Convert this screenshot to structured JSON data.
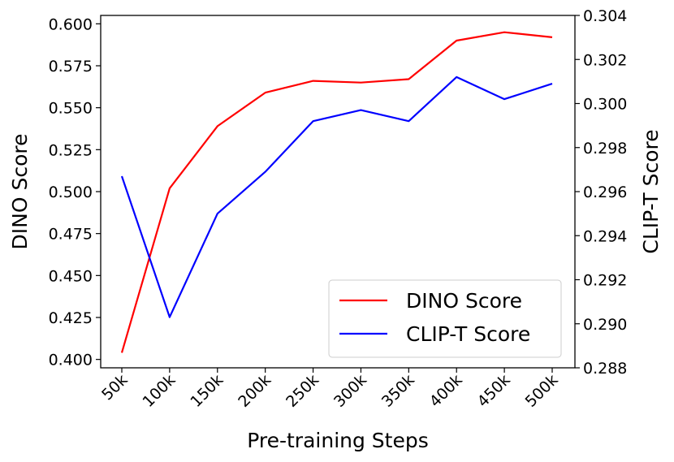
{
  "chart_data": {
    "type": "line",
    "categories": [
      "50k",
      "100k",
      "150k",
      "200k",
      "250k",
      "300k",
      "350k",
      "400k",
      "450k",
      "500k"
    ],
    "xlabel": "Pre-training Steps",
    "ylabel_left": "DINO Score",
    "ylabel_right": "CLIP-T Score",
    "ylim_left": [
      0.395,
      0.605
    ],
    "ylim_right": [
      0.288,
      0.304
    ],
    "yticks_left": [
      "0.400",
      "0.425",
      "0.450",
      "0.475",
      "0.500",
      "0.525",
      "0.550",
      "0.575",
      "0.600"
    ],
    "yticks_right": [
      "0.288",
      "0.290",
      "0.292",
      "0.294",
      "0.296",
      "0.298",
      "0.300",
      "0.302",
      "0.304"
    ],
    "grid": false,
    "legend_position": "lower-right",
    "series": [
      {
        "name": "DINO Score",
        "axis": "left",
        "color": "#ff0000",
        "values": [
          0.404,
          0.502,
          0.539,
          0.559,
          0.566,
          0.565,
          0.567,
          0.59,
          0.595,
          0.592
        ]
      },
      {
        "name": "CLIP-T Score",
        "axis": "right",
        "color": "#0000ff",
        "values": [
          0.2967,
          0.2903,
          0.295,
          0.2969,
          0.2992,
          0.2997,
          0.2992,
          0.3012,
          0.3002,
          0.3009
        ]
      }
    ]
  }
}
